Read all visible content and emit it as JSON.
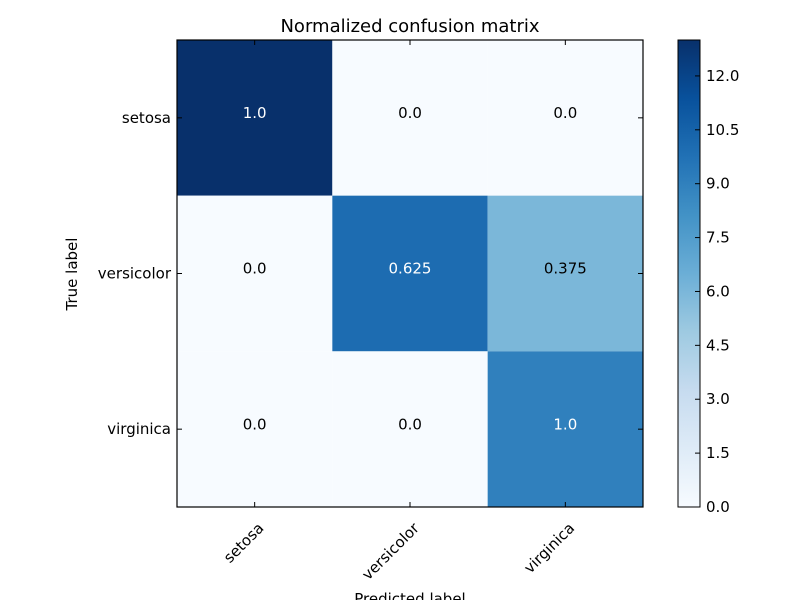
{
  "chart_data": {
    "type": "heatmap",
    "title": "Normalized confusion matrix",
    "xlabel": "Predicted label",
    "ylabel": "True label",
    "x_categories": [
      "setosa",
      "versicolor",
      "virginica"
    ],
    "y_categories": [
      "setosa",
      "versicolor",
      "virginica"
    ],
    "values": [
      [
        13,
        0,
        0
      ],
      [
        0,
        10,
        6
      ],
      [
        0,
        0,
        9
      ]
    ],
    "cell_labels": [
      [
        "1.0",
        "0.0",
        "0.0"
      ],
      [
        "0.0",
        "0.625",
        "0.375"
      ],
      [
        "0.0",
        "0.0",
        "1.0"
      ]
    ],
    "colorbar": {
      "min": 0,
      "max": 13,
      "ticks": [
        "0.0",
        "1.5",
        "3.0",
        "4.5",
        "6.0",
        "7.5",
        "9.0",
        "10.5",
        "12.0"
      ]
    },
    "colormap": "Blues"
  }
}
